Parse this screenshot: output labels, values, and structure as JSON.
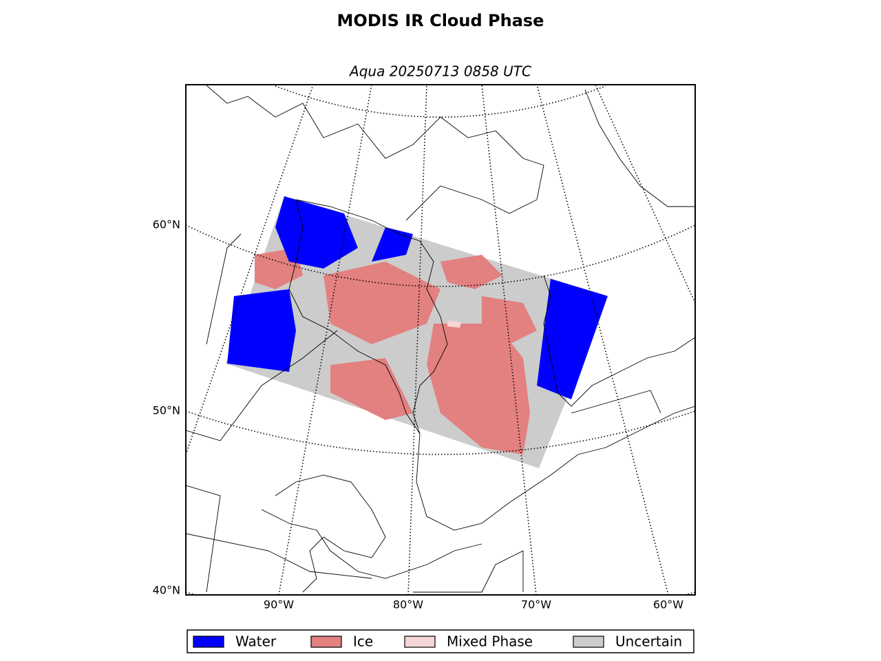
{
  "title": "MODIS IR Cloud Phase",
  "subtitle": "Aqua 20250713 0858 UTC",
  "lat_labels": [
    "60°N",
    "50°N",
    "40°N"
  ],
  "lon_labels": [
    "90°W",
    "80°W",
    "70°W",
    "60°W"
  ],
  "legend": [
    {
      "label": "Water",
      "color": "#0000ff"
    },
    {
      "label": "Ice",
      "color": "#e38080"
    },
    {
      "label": "Mixed Phase",
      "color": "#f5d5d5"
    },
    {
      "label": "Uncertain",
      "color": "#cccccc"
    }
  ]
}
